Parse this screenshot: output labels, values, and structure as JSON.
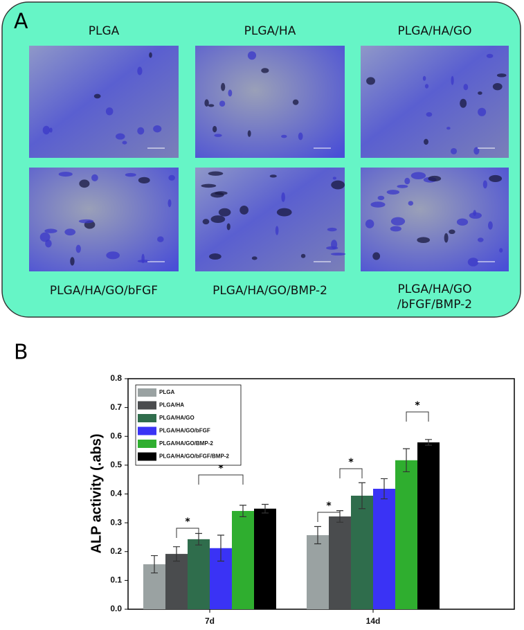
{
  "panel_a": {
    "label": "A",
    "images": [
      {
        "lines": [
          "PLGA"
        ]
      },
      {
        "lines": [
          "PLGA/HA"
        ]
      },
      {
        "lines": [
          "PLGA/HA/GO"
        ]
      },
      {
        "lines": [
          "PLGA/HA/GO/bFGF"
        ]
      },
      {
        "lines": [
          "PLGA/HA/GO/BMP-2"
        ]
      },
      {
        "lines": [
          "PLGA/HA/GO",
          "/bFGF/BMP-2"
        ]
      }
    ]
  },
  "panel_b_label": "B",
  "chart_data": {
    "type": "bar",
    "y_label": "ALP activity (.abs)",
    "categories": [
      "7d",
      "14d"
    ],
    "series": [
      {
        "name": "PLGA",
        "color": "#9aa2a2",
        "values": [
          0.156,
          0.257
        ],
        "errors": [
          0.03,
          0.03
        ]
      },
      {
        "name": "PLGA/HA",
        "color": "#4a4c4e",
        "values": [
          0.192,
          0.322
        ],
        "errors": [
          0.025,
          0.02
        ]
      },
      {
        "name": "PLGA/HA/GO",
        "color": "#2f6d4c",
        "values": [
          0.243,
          0.394
        ],
        "errors": [
          0.02,
          0.045
        ]
      },
      {
        "name": "PLGA/HA/GO/bFGF",
        "color": "#3a33f5",
        "values": [
          0.212,
          0.418
        ],
        "errors": [
          0.045,
          0.035
        ]
      },
      {
        "name": "PLGA/HA/GO/BMP-2",
        "color": "#2fae2f",
        "values": [
          0.341,
          0.517
        ],
        "errors": [
          0.02,
          0.04
        ]
      },
      {
        "name": "PLGA/HA/GO/bFGF/BMP-2",
        "color": "#000000",
        "values": [
          0.349,
          0.579
        ],
        "errors": [
          0.015,
          0.01
        ]
      }
    ],
    "annotations": [
      "*",
      "*",
      "*",
      "*",
      "*"
    ],
    "ylim": [
      0,
      0.8
    ],
    "yticks": [
      {
        "value": 0,
        "label": "0.0"
      },
      0.1,
      0.2,
      0.3,
      0.4,
      0.5,
      0.6,
      0.7,
      0.8
    ],
    "legend": "upper left"
  }
}
